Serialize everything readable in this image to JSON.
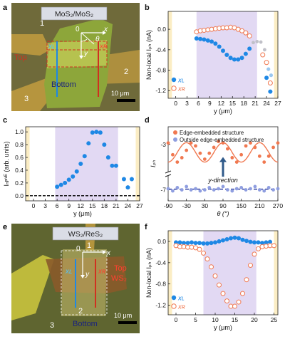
{
  "colors": {
    "blue": "#1e88e5",
    "orange": "#f07850",
    "span_purple": "#e2d9f3",
    "edge_yellow": "#fbedc4",
    "outside_blue": "#8f9ee0",
    "dashed_blue": "#3040a0",
    "arrow_blue": "#2f5a8a",
    "micro_bg_a": "#6f6a3a",
    "micro_bg_e": "#5f6530",
    "flake_green": "#8da63a",
    "flake_yellow": "#d8d860",
    "gold": "#c8a040",
    "red_line": "#d03020"
  },
  "panel_a": {
    "letter": "a",
    "title": "MoS₂/MoS₂",
    "origin": "0",
    "x_axis": "x",
    "y_axis": "y",
    "theta": "θ",
    "xL": "xʟ",
    "xR": "xʀ",
    "top": "Top",
    "bottom": "Bottom",
    "electrodes": [
      "1",
      "2",
      "3"
    ],
    "scale_bar": "10 μm"
  },
  "panel_e": {
    "letter": "e",
    "title": "WS₂/ReS₂",
    "origin": "0",
    "x_axis": "x",
    "y_axis": "y",
    "xL": "xʟ",
    "xR": "xʀ",
    "top": "Top",
    "top_material": "WS₂",
    "bottom": "Bottom",
    "electrodes": [
      "1",
      "2",
      "3"
    ],
    "scale_bar": "10 μm"
  },
  "chart_data": [
    {
      "panel": "b",
      "type": "scatter",
      "xlabel": "y (μm)",
      "ylabel": "Non-local Iₚₕ (nA)",
      "xlim": [
        -2,
        27
      ],
      "ylim": [
        -1.35,
        0.35
      ],
      "xticks": [
        0,
        3,
        6,
        9,
        12,
        15,
        18,
        21,
        24,
        27
      ],
      "yticks": [
        0.0,
        -0.4,
        -0.8,
        -1.2
      ],
      "ytick_labels": [
        "0.0",
        "-0.4",
        "-0.8",
        "-1.2"
      ],
      "shaded_span": [
        5.5,
        21.5
      ],
      "edge_spans": [
        [
          -2,
          -1
        ],
        [
          26,
          27
        ]
      ],
      "legend": [
        "xʟ",
        "xʀ"
      ],
      "series": [
        {
          "name": "xʟ",
          "style": "filled",
          "color": "blue",
          "x": [
            5.5,
            6.5,
            7.5,
            8.5,
            9.5,
            10.5,
            11.5,
            12.5,
            13.5,
            14.5,
            15.5,
            16.5,
            17.5,
            18.5,
            19.5,
            24,
            25
          ],
          "y": [
            -0.18,
            -0.19,
            -0.2,
            -0.22,
            -0.24,
            -0.28,
            -0.34,
            -0.42,
            -0.5,
            -0.56,
            -0.59,
            -0.59,
            -0.56,
            -0.48,
            -0.38,
            -0.95,
            -1.22
          ]
        },
        {
          "name": "xʀ",
          "style": "open",
          "color": "orange",
          "x": [
            5.5,
            6.5,
            7.5,
            8.5,
            9.5,
            10.5,
            11.5,
            12.5,
            13.5,
            14.5,
            15.5,
            16.5,
            17.5,
            18.5,
            19.5,
            23,
            24,
            25
          ],
          "y": [
            -0.05,
            -0.03,
            -0.02,
            -0.01,
            0.0,
            0.01,
            0.02,
            0.03,
            0.03,
            0.04,
            0.03,
            0.0,
            -0.03,
            -0.07,
            -0.13,
            -0.5,
            -0.65,
            -1.05
          ]
        },
        {
          "name": "",
          "style": "faint",
          "color": "#c0c0c8",
          "x": [
            20.5,
            21.5,
            22.5,
            23.5
          ],
          "y": [
            -0.26,
            -0.24,
            -0.25,
            -0.4
          ]
        },
        {
          "name": "",
          "style": "faint-blue",
          "color": "#9cc8ef",
          "x": [
            24.5,
            25.2
          ],
          "y": [
            -0.78,
            -0.9
          ]
        }
      ]
    },
    {
      "panel": "c",
      "type": "scatter",
      "xlabel": "y (μm)",
      "ylabel": "Iₙᴘᵛᴱ (arb. units)",
      "xlim": [
        -2,
        27
      ],
      "ylim": [
        -0.08,
        1.08
      ],
      "xticks": [
        0,
        3,
        6,
        9,
        12,
        15,
        18,
        21,
        24,
        27
      ],
      "yticks": [
        0.0,
        0.2,
        0.4,
        0.6,
        0.8,
        1.0
      ],
      "ytick_labels": [
        "0.0",
        "0.2",
        "0.4",
        "0.6",
        "0.8",
        "1.0"
      ],
      "shaded_span": [
        5.5,
        21.5
      ],
      "edge_spans": [
        [
          -2,
          -1
        ],
        [
          26,
          27
        ]
      ],
      "baseline": 0.0,
      "series": [
        {
          "name": "",
          "style": "filled",
          "color": "blue",
          "x": [
            6,
            7,
            8,
            9,
            10,
            11,
            12,
            13,
            14,
            15,
            16,
            17,
            18,
            19,
            20,
            21,
            23,
            24,
            25
          ],
          "y": [
            0.14,
            0.17,
            0.2,
            0.25,
            0.3,
            0.38,
            0.5,
            0.62,
            0.82,
            0.99,
            1.0,
            0.99,
            0.8,
            0.6,
            0.47,
            0.47,
            0.26,
            0.13,
            0.26
          ]
        }
      ]
    },
    {
      "panel": "d",
      "type": "scatter",
      "xlabel": "θ (°)",
      "ylabel": "Iₚₕ",
      "xlim": [
        -90,
        270
      ],
      "xticks": [
        -90,
        -30,
        30,
        90,
        150,
        210,
        270
      ],
      "yticks": [
        -3,
        -7
      ],
      "ytick_labels": [
        "-3",
        "-7"
      ],
      "annotation": "y-direction",
      "annotation_x": 90,
      "legend": [
        "Edge-embedded structure",
        "Outside edge-embedded structure"
      ],
      "series": [
        {
          "name": "Edge-embedded structure",
          "style": "filled",
          "color": "orange",
          "x": [
            -90,
            -75,
            -60,
            -45,
            -30,
            -15,
            0,
            15,
            30,
            45,
            60,
            75,
            90,
            105,
            120,
            135,
            150,
            165,
            180,
            195,
            210,
            225,
            240,
            255,
            270
          ],
          "y": [
            -2.95,
            -3.35,
            -3.6,
            -3.45,
            -3.2,
            -2.95,
            -3.05,
            -3.3,
            -3.5,
            -3.3,
            -3.1,
            -2.9,
            -2.95,
            -3.15,
            -3.45,
            -3.6,
            -3.35,
            -3.05,
            -2.95,
            -3.1,
            -3.4,
            -3.6,
            -3.4,
            -3.1,
            -2.95
          ]
        },
        {
          "name": "Outside edge-embedded structure",
          "style": "filled",
          "color": "outside_blue",
          "x": [
            -90,
            -75,
            -60,
            -45,
            -30,
            -15,
            0,
            15,
            30,
            45,
            60,
            75,
            90,
            105,
            120,
            135,
            150,
            165,
            180,
            195,
            210,
            225,
            240,
            255,
            270
          ],
          "y": [
            -6.95,
            -7.05,
            -6.9,
            -7.0,
            -6.85,
            -7.0,
            -6.95,
            -7.05,
            -7.0,
            -6.9,
            -7.0,
            -6.95,
            -6.85,
            -7.0,
            -7.05,
            -6.95,
            -6.9,
            -7.0,
            -6.95,
            -6.85,
            -7.0,
            -7.05,
            -6.9,
            -7.0,
            -6.95
          ]
        }
      ]
    },
    {
      "panel": "f",
      "type": "scatter",
      "xlabel": "y (μm)",
      "ylabel": "Non-local Iₚₕ (nA)",
      "xlim": [
        -2,
        26
      ],
      "ylim": [
        -1.38,
        0.2
      ],
      "xticks": [
        0,
        5,
        10,
        15,
        20,
        25
      ],
      "yticks": [
        0.0,
        -0.4,
        -0.8,
        -1.2
      ],
      "ytick_labels": [
        "0.0",
        "-0.4",
        "-0.8",
        "-1.2"
      ],
      "shaded_span": [
        7,
        20.5
      ],
      "edge_spans": [
        [
          -2,
          -1
        ],
        [
          25,
          26
        ]
      ],
      "legend": [
        "xʟ",
        "xʀ"
      ],
      "series": [
        {
          "name": "xʟ",
          "style": "filled",
          "color": "blue",
          "x": [
            0,
            1,
            2,
            3,
            4,
            5,
            6,
            7,
            8,
            9,
            10,
            11,
            12,
            13,
            14,
            15,
            16,
            17,
            18,
            19,
            20,
            21,
            22,
            23,
            24
          ],
          "y": [
            -0.02,
            -0.02,
            -0.03,
            -0.03,
            -0.02,
            -0.03,
            -0.03,
            -0.04,
            -0.04,
            -0.03,
            -0.02,
            0.0,
            0.02,
            0.04,
            0.06,
            0.07,
            0.06,
            0.03,
            0.01,
            -0.01,
            -0.02,
            -0.02,
            -0.03,
            -0.02,
            -0.01
          ]
        },
        {
          "name": "xʀ",
          "style": "open",
          "color": "orange",
          "x": [
            0,
            1,
            2,
            3,
            4,
            5,
            6,
            7,
            8,
            9,
            10,
            11,
            12,
            13,
            14,
            15,
            16,
            17,
            18,
            19,
            20,
            21,
            22,
            23,
            24,
            25
          ],
          "y": [
            -0.08,
            -0.1,
            -0.1,
            -0.11,
            -0.11,
            -0.12,
            -0.15,
            -0.22,
            -0.33,
            -0.48,
            -0.65,
            -0.82,
            -0.98,
            -1.12,
            -1.22,
            -1.22,
            -1.14,
            -0.98,
            -0.72,
            -0.45,
            -0.24,
            -0.14,
            -0.1,
            -0.09,
            -0.08,
            -0.08
          ]
        }
      ]
    }
  ]
}
